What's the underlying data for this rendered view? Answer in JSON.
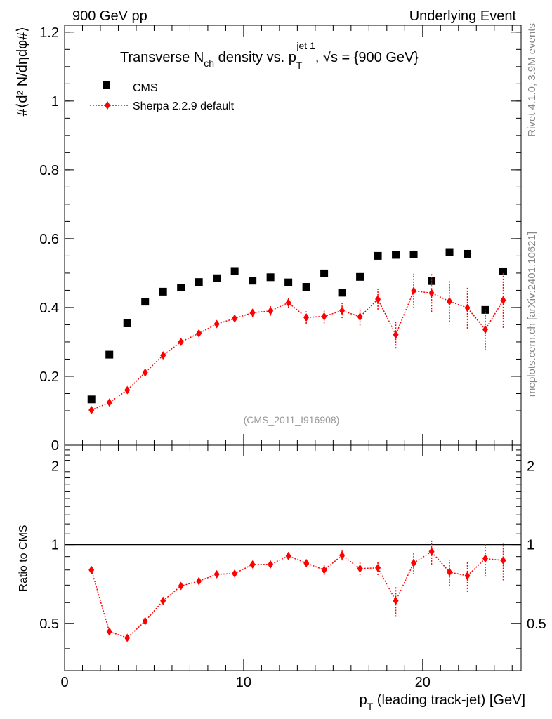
{
  "header": {
    "left": "900 GeV pp",
    "right": "Underlying Event"
  },
  "side_labels": {
    "rivet": "Rivet 4.1.0,  3.9M events",
    "mcplots": "mcplots.cern.ch [arXiv:2401.10621]"
  },
  "watermark": "(CMS_2011_I916908)",
  "chart_data": [
    {
      "type": "scatter",
      "panel": "main",
      "title": "Transverse N_ch density vs. p_T^jet 1, √s = {900 GeV}",
      "title_parts": {
        "a": "Transverse N",
        "sub1": "ch",
        "b": " density vs. p",
        "sub2": "T",
        "sup": "jet 1",
        "c": ", ",
        "sqrt": "√s",
        "d": " = {900 GeV}"
      },
      "ylabel": "#⟨d² N/dηdφ#⟩",
      "xlim": [
        0,
        25.5
      ],
      "ylim": [
        0,
        1.22
      ],
      "yticks": [
        0,
        0.2,
        0.4,
        0.6,
        0.8,
        1,
        1.2
      ],
      "ytick_labels": [
        "0",
        "0.2",
        "0.4",
        "0.6",
        "0.8",
        "1",
        "1.2"
      ],
      "legend_position": "top-left",
      "series": [
        {
          "name": "CMS",
          "marker": "square",
          "color": "#000000",
          "x": [
            1.5,
            2.5,
            3.5,
            4.5,
            5.5,
            6.5,
            7.5,
            8.5,
            9.5,
            10.5,
            11.5,
            12.5,
            13.5,
            14.5,
            15.5,
            16.5,
            17.5,
            18.5,
            19.5,
            20.5,
            21.5,
            22.5,
            23.5,
            24.5
          ],
          "y": [
            0.133,
            0.263,
            0.354,
            0.417,
            0.446,
            0.458,
            0.474,
            0.485,
            0.506,
            0.478,
            0.488,
            0.473,
            0.46,
            0.499,
            0.443,
            0.489,
            0.55,
            0.553,
            0.554,
            0.477,
            0.561,
            0.556,
            0.393,
            0.505
          ]
        },
        {
          "name": "Sherpa 2.2.9 default",
          "marker": "diamond",
          "color": "#ff0000",
          "x": [
            1.5,
            2.5,
            3.5,
            4.5,
            5.5,
            6.5,
            7.5,
            8.5,
            9.5,
            10.5,
            11.5,
            12.5,
            13.5,
            14.5,
            15.5,
            16.5,
            17.5,
            18.5,
            19.5,
            20.5,
            21.5,
            22.5,
            23.5,
            24.5
          ],
          "y": [
            0.102,
            0.124,
            0.16,
            0.211,
            0.261,
            0.3,
            0.325,
            0.352,
            0.368,
            0.385,
            0.39,
            0.414,
            0.371,
            0.374,
            0.391,
            0.373,
            0.424,
            0.321,
            0.448,
            0.442,
            0.418,
            0.399,
            0.336,
            0.421
          ],
          "yerr": [
            0.005,
            0.006,
            0.007,
            0.008,
            0.008,
            0.009,
            0.01,
            0.01,
            0.011,
            0.012,
            0.014,
            0.016,
            0.018,
            0.02,
            0.022,
            0.025,
            0.03,
            0.04,
            0.05,
            0.055,
            0.06,
            0.06,
            0.06,
            0.08
          ]
        }
      ]
    },
    {
      "type": "scatter",
      "panel": "ratio",
      "xlabel": "p_T (leading track-jet) [GeV]",
      "xlabel_parts": {
        "a": "p",
        "sub": "T",
        "b": " (leading track-jet) [GeV]"
      },
      "ylabel": "Ratio to CMS",
      "xlim": [
        0,
        25.5
      ],
      "ylim": [
        0.33,
        2.4
      ],
      "ylog": true,
      "xticks": [
        0,
        10,
        20
      ],
      "xtick_labels": [
        "0",
        "10",
        "20"
      ],
      "yticks": [
        0.5,
        1,
        2
      ],
      "ytick_labels": [
        "0.5",
        "1",
        "2"
      ],
      "reference_line": 1,
      "series": [
        {
          "name": "Sherpa 2.2.9 default / CMS",
          "marker": "diamond",
          "color": "#ff0000",
          "x": [
            1.5,
            2.5,
            3.5,
            4.5,
            5.5,
            6.5,
            7.5,
            8.5,
            9.5,
            10.5,
            11.5,
            12.5,
            13.5,
            14.5,
            15.5,
            16.5,
            17.5,
            18.5,
            19.5,
            20.5,
            21.5,
            22.5,
            23.5,
            24.5
          ],
          "y": [
            0.8,
            0.465,
            0.44,
            0.51,
            0.61,
            0.695,
            0.725,
            0.77,
            0.775,
            0.84,
            0.84,
            0.905,
            0.85,
            0.8,
            0.91,
            0.81,
            0.815,
            0.61,
            0.85,
            0.94,
            0.785,
            0.76,
            0.885,
            0.87
          ],
          "yerr": [
            0.012,
            0.01,
            0.01,
            0.012,
            0.014,
            0.016,
            0.018,
            0.018,
            0.02,
            0.022,
            0.024,
            0.03,
            0.03,
            0.035,
            0.04,
            0.045,
            0.05,
            0.08,
            0.08,
            0.1,
            0.09,
            0.1,
            0.13,
            0.14
          ]
        }
      ]
    }
  ]
}
